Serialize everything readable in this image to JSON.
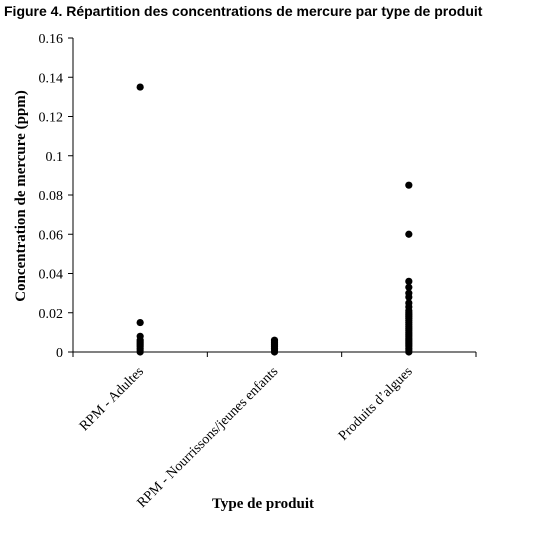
{
  "figure_title": "Figure 4. Répartition des concentrations de mercure par type de produit",
  "chart_data": {
    "type": "scatter",
    "title": "Figure 4. Répartition des concentrations de mercure par type de produit",
    "xlabel": "Type de produit",
    "ylabel": "Concentration de mercure (ppm)",
    "categories": [
      "RPM - Adultes",
      "RPM - Nourrissons/jeunes enfants",
      "Produits d’algues"
    ],
    "ylim": [
      0,
      0.16
    ],
    "yticks": [
      0,
      0.02,
      0.04,
      0.06,
      0.08,
      0.1,
      0.12,
      0.14,
      0.16
    ],
    "ytick_labels": [
      "0",
      "0.02",
      "0.04",
      "0.06",
      "0.08",
      "0.1",
      "0.12",
      "0.14",
      "0.16"
    ],
    "grid": false,
    "legend": "none",
    "marker_color": "#000000",
    "series": [
      {
        "category": "RPM - Adultes",
        "values": [
          0.135,
          0.015,
          0.008,
          0.006,
          0.005,
          0.004,
          0.003,
          0.002,
          0.001,
          0.0
        ]
      },
      {
        "category": "RPM - Nourrissons/jeunes enfants",
        "values": [
          0.006,
          0.005,
          0.004,
          0.003,
          0.002,
          0.001,
          0.0
        ]
      },
      {
        "category": "Produits d’algues",
        "values": [
          0.085,
          0.06,
          0.036,
          0.033,
          0.03,
          0.028,
          0.025,
          0.023,
          0.021,
          0.02,
          0.019,
          0.018,
          0.017,
          0.016,
          0.015,
          0.014,
          0.013,
          0.012,
          0.011,
          0.01,
          0.009,
          0.008,
          0.007,
          0.006,
          0.005,
          0.004,
          0.003,
          0.002,
          0.001,
          0.0
        ]
      }
    ]
  }
}
